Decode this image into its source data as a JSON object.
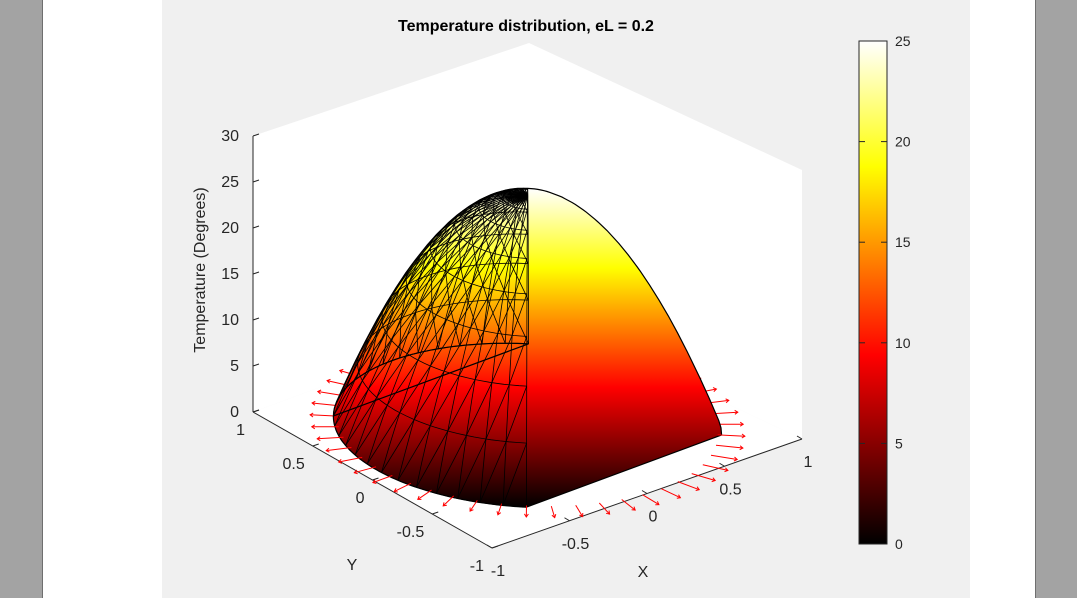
{
  "chart_data": {
    "type": "surface",
    "title": "Temperature distribution, eL = 0.2",
    "xlabel": "X",
    "ylabel": "Y",
    "zlabel": "Temperature (Degrees)",
    "xlim": [
      -1,
      1
    ],
    "ylim": [
      -1,
      1
    ],
    "zlim": [
      0,
      30
    ],
    "x_ticks": [
      "-1",
      "-0.5",
      "0",
      "0.5",
      "1"
    ],
    "y_ticks": [
      "-1",
      "-0.5",
      "0",
      "0.5",
      "1"
    ],
    "z_ticks": [
      "0",
      "5",
      "10",
      "15",
      "20",
      "25",
      "30"
    ],
    "peak_temperature": 25,
    "domain": "unit disk",
    "boundary_temperature": 0,
    "boundary_arrows_color": "#ff0000",
    "colormap": "hot",
    "colorbar": {
      "ticks": [
        "0",
        "5",
        "10",
        "15",
        "20",
        "25"
      ],
      "range": [
        0,
        25
      ]
    },
    "grid": false
  }
}
